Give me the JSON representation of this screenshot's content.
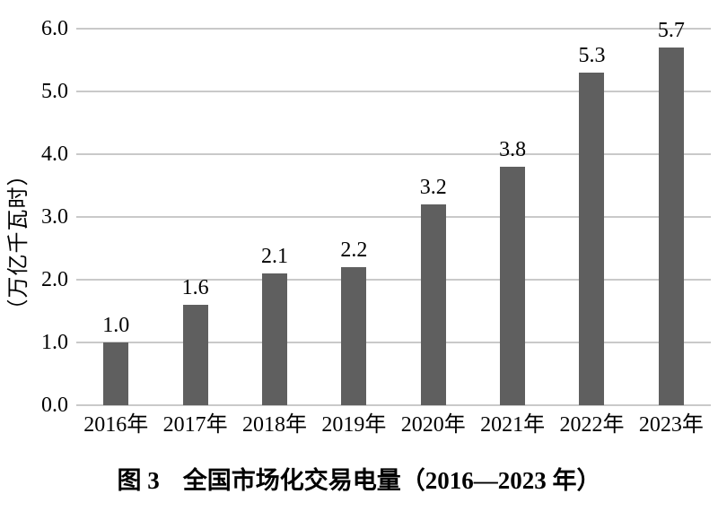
{
  "chart_data": {
    "type": "bar",
    "title": "图 3 全国市场化交易电量（2016—2023 年）",
    "categories": [
      "2016年",
      "2017年",
      "2018年",
      "2019年",
      "2020年",
      "2021年",
      "2022年",
      "2023年"
    ],
    "values": [
      1.0,
      1.6,
      2.1,
      2.2,
      3.2,
      3.8,
      5.3,
      5.7
    ],
    "data_labels": [
      "1.0",
      "1.6",
      "2.1",
      "2.2",
      "3.2",
      "3.8",
      "5.3",
      "5.7"
    ],
    "xlabel": "",
    "ylabel": "（万亿千瓦时）",
    "ylim": [
      0,
      6
    ],
    "ytick_step": 1,
    "ytick_labels": [
      "0.0",
      "1.0",
      "2.0",
      "3.0",
      "4.0",
      "5.0",
      "6.0"
    ],
    "grid": true,
    "legend": "none",
    "bar_color": "#5f5f5f",
    "gridline_color": "#c9c9c9",
    "text_color": "#000000"
  },
  "caption": {
    "figure_label": "图 3",
    "figure_title": "全国市场化交易电量（2016—2023 年）"
  }
}
